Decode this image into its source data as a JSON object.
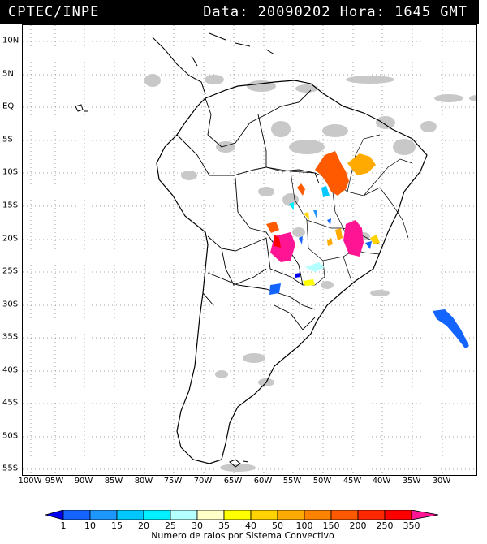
{
  "header": {
    "source": "CPTEC/INPE",
    "datetime": "Data: 20090202 Hora: 1645 GMT"
  },
  "axes": {
    "latitude_labels": [
      "10N",
      "5N",
      "EQ",
      "5S",
      "10S",
      "15S",
      "20S",
      "25S",
      "30S",
      "35S",
      "40S",
      "45S",
      "50S",
      "55S"
    ],
    "latitude_values": [
      10,
      5,
      0,
      -5,
      -10,
      -15,
      -20,
      -25,
      -30,
      -35,
      -40,
      -45,
      -50,
      -55
    ],
    "longitude_labels": [
      "100W",
      "95W",
      "90W",
      "85W",
      "80W",
      "75W",
      "70W",
      "65W",
      "60W",
      "55W",
      "50W",
      "45W",
      "40W",
      "35W",
      "30W"
    ],
    "longitude_values": [
      -100,
      -95,
      -90,
      -85,
      -80,
      -75,
      -70,
      -65,
      -60,
      -55,
      -50,
      -45,
      -40,
      -35,
      -30
    ]
  },
  "legend": {
    "caption": "Numero de raios por Sistema Convectivo",
    "ticks": [
      "1",
      "10",
      "15",
      "20",
      "25",
      "30",
      "35",
      "40",
      "50",
      "100",
      "150",
      "200",
      "250",
      "350"
    ],
    "colors": [
      "#0000f0",
      "#1464ff",
      "#1e96ff",
      "#00c8ff",
      "#00f0ff",
      "#b4ffff",
      "#ffffc8",
      "#ffff00",
      "#ffd200",
      "#ffaa00",
      "#ff8200",
      "#ff5a00",
      "#ff2800",
      "#ff0000",
      "#ff1493"
    ]
  },
  "colors": {
    "cloud_gray": "#c8c8c8",
    "coast": "#000000"
  }
}
